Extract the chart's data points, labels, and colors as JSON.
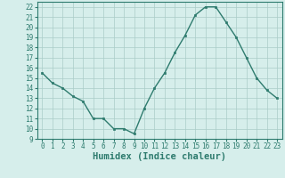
{
  "x": [
    0,
    1,
    2,
    3,
    4,
    5,
    6,
    7,
    8,
    9,
    10,
    11,
    12,
    13,
    14,
    15,
    16,
    17,
    18,
    19,
    20,
    21,
    22,
    23
  ],
  "y": [
    15.5,
    14.5,
    14.0,
    13.2,
    12.7,
    11.0,
    11.0,
    10.0,
    10.0,
    9.5,
    12.0,
    14.0,
    15.5,
    17.5,
    19.2,
    21.2,
    22.0,
    22.0,
    20.5,
    19.0,
    17.0,
    15.0,
    13.8,
    13.0
  ],
  "xlabel": "Humidex (Indice chaleur)",
  "ylim": [
    9,
    22.5
  ],
  "xlim": [
    -0.5,
    23.5
  ],
  "yticks": [
    9,
    10,
    11,
    12,
    13,
    14,
    15,
    16,
    17,
    18,
    19,
    20,
    21,
    22
  ],
  "xticks": [
    0,
    1,
    2,
    3,
    4,
    5,
    6,
    7,
    8,
    9,
    10,
    11,
    12,
    13,
    14,
    15,
    16,
    17,
    18,
    19,
    20,
    21,
    22,
    23
  ],
  "line_color": "#2e7b6e",
  "marker_color": "#2e7b6e",
  "bg_color": "#d6eeeb",
  "grid_color": "#aaccc8",
  "tick_fontsize": 5.5,
  "xlabel_fontsize": 7.5
}
